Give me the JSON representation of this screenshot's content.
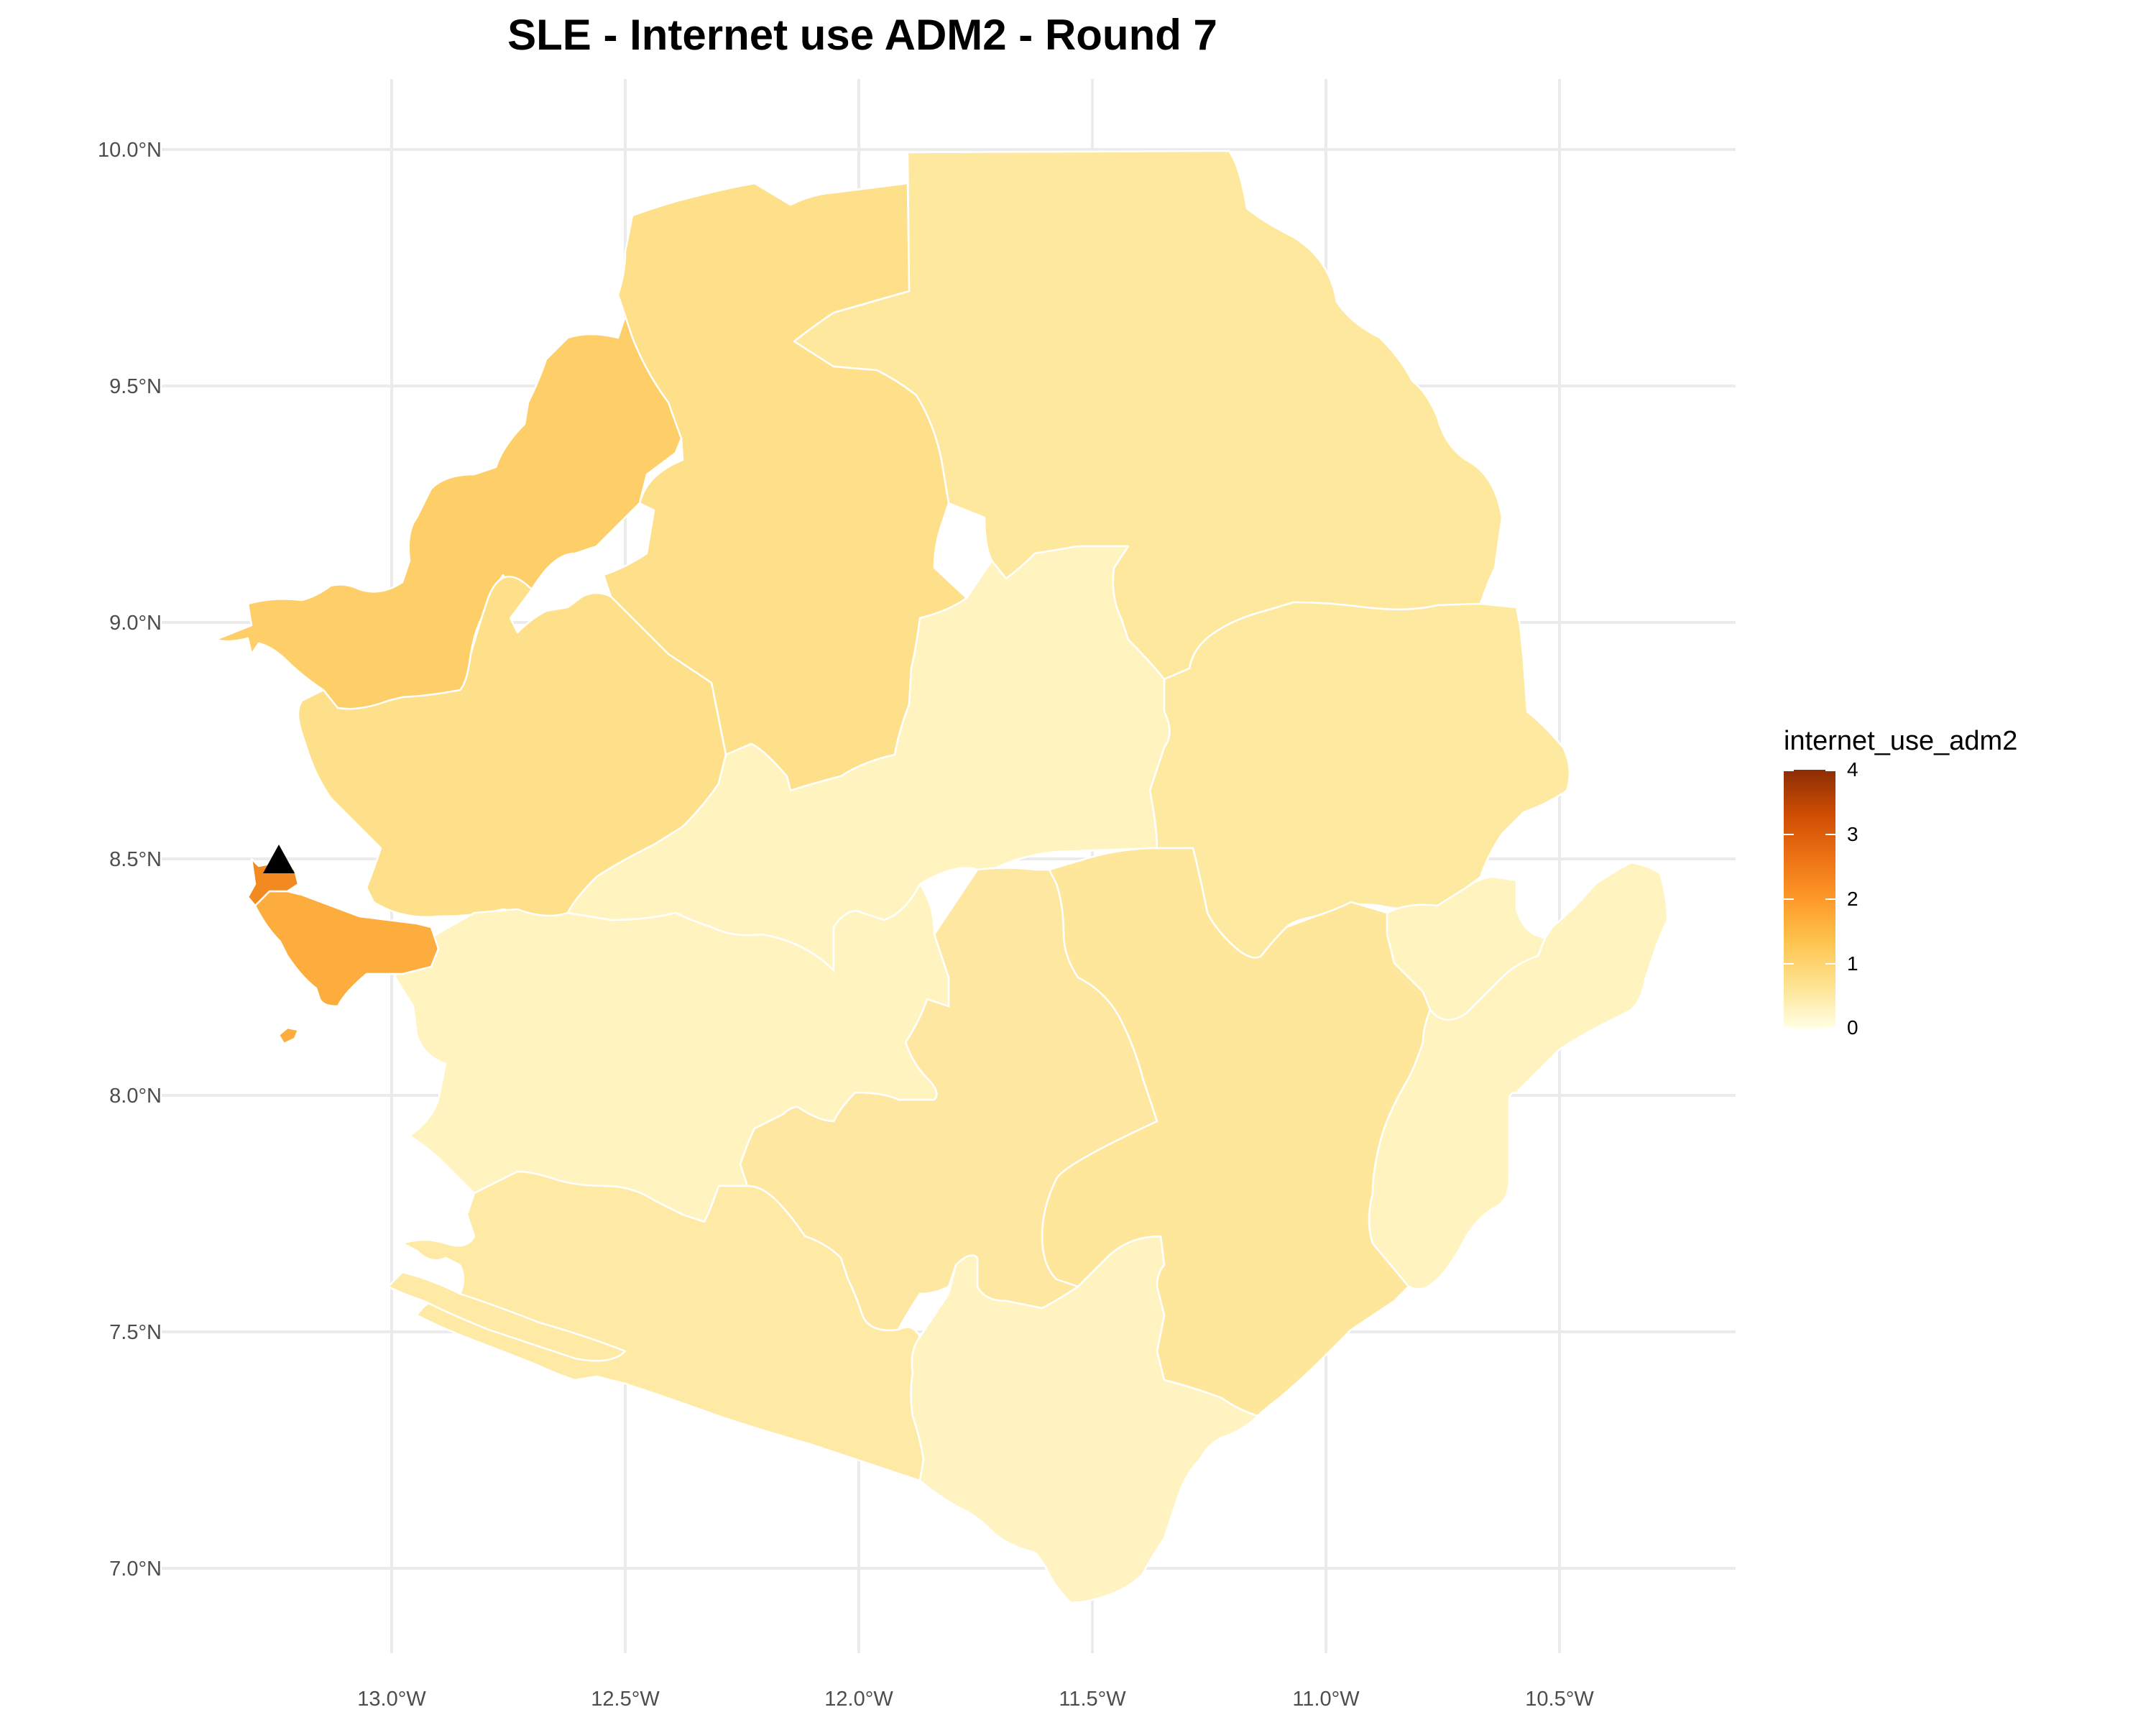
{
  "title": "SLE - Internet use ADM2 - Round 7",
  "legend": {
    "title": "internet_use_adm2",
    "ticks": [
      "4",
      "3",
      "2",
      "1",
      "0"
    ],
    "palette": [
      "#ffffe5",
      "#fee391",
      "#fec44f",
      "#fe9929",
      "#ec7014",
      "#cc4c02",
      "#8c2d04"
    ]
  },
  "axes": {
    "x_ticks": [
      "13.0°W",
      "12.5°W",
      "12.0°W",
      "11.5°W",
      "11.0°W",
      "10.5°W"
    ],
    "y_ticks": [
      "10.0°N",
      "9.5°N",
      "9.0°N",
      "8.5°N",
      "8.0°N",
      "7.5°N",
      "7.0°N"
    ]
  },
  "map": {
    "country": "SLE",
    "level": "ADM2",
    "marker": "triangle-marker",
    "districts": [
      {
        "id": "koinadugu",
        "value": 0.65,
        "color": "#fee89d"
      },
      {
        "id": "bombali",
        "value": 0.9,
        "color": "#fee08b"
      },
      {
        "id": "kambia",
        "value": 1.3,
        "color": "#fecf69"
      },
      {
        "id": "port-loko",
        "value": 0.95,
        "color": "#fee08b"
      },
      {
        "id": "tonkolili",
        "value": 0.45,
        "color": "#fff4c0"
      },
      {
        "id": "kono",
        "value": 0.7,
        "color": "#fee9a0"
      },
      {
        "id": "kailahun",
        "value": 0.45,
        "color": "#fff3bf"
      },
      {
        "id": "kenema",
        "value": 0.75,
        "color": "#fee69a"
      },
      {
        "id": "bo",
        "value": 0.75,
        "color": "#fee7a0"
      },
      {
        "id": "moyamba",
        "value": 0.45,
        "color": "#fff3bf"
      },
      {
        "id": "bonthe",
        "value": 0.65,
        "color": "#feeaa5"
      },
      {
        "id": "pujehun",
        "value": 0.45,
        "color": "#fff3c2"
      },
      {
        "id": "western-rural",
        "value": 1.9,
        "color": "#fdac3e"
      },
      {
        "id": "western-urban",
        "value": 2.7,
        "color": "#f28a21"
      }
    ]
  }
}
